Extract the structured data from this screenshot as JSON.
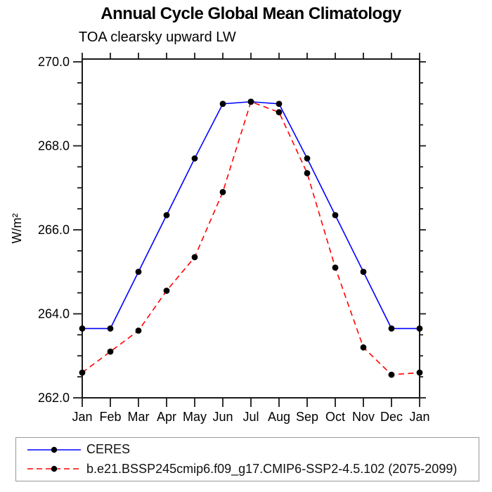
{
  "chart_data": {
    "type": "line",
    "title": "Annual Cycle Global Mean Climatology",
    "subtitle": "TOA clearsky upward LW",
    "ylabel": "W/m²",
    "xlabel": "",
    "categories": [
      "Jan",
      "Feb",
      "Mar",
      "Apr",
      "May",
      "Jun",
      "Jul",
      "Aug",
      "Sep",
      "Oct",
      "Nov",
      "Dec",
      "Jan"
    ],
    "ylim": [
      262.0,
      270.0
    ],
    "ytick_major_step": 2.0,
    "ytick_minor_step": 0.5,
    "ytick_labels": [
      "262.0",
      "264.0",
      "266.0",
      "268.0",
      "270.0"
    ],
    "grid": false,
    "legend_position": "bottom-left-box",
    "legend_border_color": "#999999",
    "axis_color": "#1a1a1a",
    "marker_color": "#000000",
    "series": [
      {
        "name": "CERES",
        "color": "#0000ff",
        "style": "solid",
        "marker": "filled-circle",
        "values": [
          263.65,
          263.65,
          265.0,
          266.35,
          267.7,
          269.0,
          269.05,
          269.0,
          267.7,
          266.35,
          265.0,
          263.65,
          263.65
        ]
      },
      {
        "name": "b.e21.BSSP245cmip6.f09_g17.CMIP6-SSP2-4.5.102 (2075-2099)",
        "color": "#ff0000",
        "style": "dashed",
        "marker": "filled-circle",
        "values": [
          262.6,
          263.1,
          263.6,
          264.55,
          265.35,
          266.9,
          269.05,
          268.8,
          267.35,
          265.1,
          263.2,
          262.55,
          262.6
        ]
      }
    ]
  }
}
